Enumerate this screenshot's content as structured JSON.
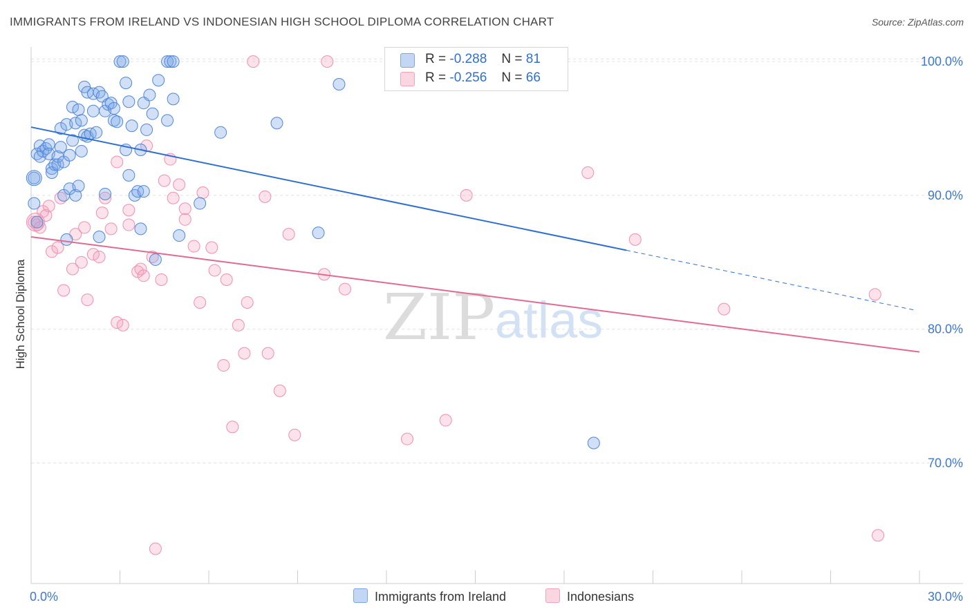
{
  "title": "IMMIGRANTS FROM IRELAND VS INDONESIAN HIGH SCHOOL DIPLOMA CORRELATION CHART",
  "source": "Source: ZipAtlas.com",
  "watermark": {
    "zip": "ZIP",
    "atlas": "atlas"
  },
  "legend": {
    "r_label": "R =",
    "n_label": "N =",
    "rows": [
      {
        "r": "-0.288",
        "n": "81",
        "color": "#7aa6e8"
      },
      {
        "r": "-0.256",
        "n": "66",
        "color": "#f4a3bd"
      }
    ]
  },
  "bottom_legend": [
    {
      "label": "Immigrants from Ireland",
      "color": "#7aa6e8"
    },
    {
      "label": "Indonesians",
      "color": "#f4a3bd"
    }
  ],
  "colors": {
    "blue_fill": "rgba(122,166,232,0.35)",
    "blue_stroke": "#4f86d6",
    "blue_line": "#2e6fd0",
    "pink_fill": "rgba(244,163,189,0.30)",
    "pink_stroke": "#ee8fad",
    "pink_line": "#e2698f",
    "grid": "#e2e2e2",
    "tick_label": "#3d78cc"
  },
  "chart_data": {
    "type": "scatter",
    "xlabel": "",
    "ylabel": "High School Diploma",
    "x_tick_labels": [
      "0.0%",
      "30.0%"
    ],
    "y_tick_labels": [
      "100.0%",
      "90.0%",
      "80.0%",
      "70.0%"
    ],
    "y_ticks": [
      100,
      90,
      80,
      70
    ],
    "xlim": [
      0,
      30
    ],
    "ylim": [
      61,
      101.5
    ],
    "grid": true,
    "legend_position": "top-center",
    "series": [
      {
        "name": "Immigrants from Ireland",
        "color": "#7aa6e8",
        "trend": {
          "x0": 0,
          "y0": 95.1,
          "x1": 20.1,
          "y1": 85.9,
          "dashed_to_x": 29.9,
          "dashed_to_y": 81.4
        },
        "points": [
          [
            0.1,
            91.3
          ],
          [
            0.1,
            89.4
          ],
          [
            0.2,
            88.0
          ],
          [
            0.2,
            93.1
          ],
          [
            0.3,
            93.7
          ],
          [
            0.3,
            92.9
          ],
          [
            0.4,
            93.3
          ],
          [
            0.5,
            93.5
          ],
          [
            0.6,
            93.8
          ],
          [
            0.6,
            93.1
          ],
          [
            0.7,
            92.0
          ],
          [
            0.7,
            91.7
          ],
          [
            0.8,
            92.3
          ],
          [
            0.9,
            92.3
          ],
          [
            0.9,
            92.9
          ],
          [
            1.0,
            95.0
          ],
          [
            1.0,
            93.6
          ],
          [
            1.1,
            90.0
          ],
          [
            1.1,
            92.5
          ],
          [
            1.2,
            95.3
          ],
          [
            1.2,
            86.7
          ],
          [
            1.3,
            93.0
          ],
          [
            1.3,
            90.5
          ],
          [
            1.4,
            94.1
          ],
          [
            1.4,
            96.6
          ],
          [
            1.5,
            95.4
          ],
          [
            1.5,
            90.0
          ],
          [
            1.6,
            96.4
          ],
          [
            1.6,
            90.7
          ],
          [
            1.7,
            93.3
          ],
          [
            1.7,
            95.6
          ],
          [
            1.8,
            94.5
          ],
          [
            1.8,
            98.1
          ],
          [
            1.9,
            94.4
          ],
          [
            1.9,
            97.7
          ],
          [
            2.0,
            94.6
          ],
          [
            2.1,
            96.3
          ],
          [
            2.1,
            97.6
          ],
          [
            2.2,
            94.7
          ],
          [
            2.3,
            97.7
          ],
          [
            2.3,
            86.9
          ],
          [
            2.4,
            97.4
          ],
          [
            2.5,
            96.3
          ],
          [
            2.5,
            90.1
          ],
          [
            2.6,
            96.8
          ],
          [
            2.7,
            96.9
          ],
          [
            2.8,
            95.6
          ],
          [
            2.8,
            96.5
          ],
          [
            2.9,
            95.5
          ],
          [
            3.0,
            100.0
          ],
          [
            3.1,
            100.0
          ],
          [
            3.2,
            93.4
          ],
          [
            3.2,
            98.4
          ],
          [
            3.3,
            97.0
          ],
          [
            3.3,
            91.5
          ],
          [
            3.4,
            95.2
          ],
          [
            3.5,
            90.0
          ],
          [
            3.6,
            90.3
          ],
          [
            3.7,
            93.4
          ],
          [
            3.7,
            87.5
          ],
          [
            3.8,
            90.3
          ],
          [
            3.8,
            96.9
          ],
          [
            3.9,
            94.9
          ],
          [
            4.0,
            97.5
          ],
          [
            4.1,
            96.1
          ],
          [
            4.2,
            85.2
          ],
          [
            4.3,
            98.6
          ],
          [
            4.6,
            95.6
          ],
          [
            4.6,
            100.0
          ],
          [
            4.7,
            100.0
          ],
          [
            4.8,
            100.0
          ],
          [
            4.8,
            97.2
          ],
          [
            5.0,
            87.0
          ],
          [
            5.7,
            89.4
          ],
          [
            6.4,
            94.7
          ],
          [
            8.3,
            95.4
          ],
          [
            9.7,
            87.2
          ],
          [
            10.4,
            98.3
          ],
          [
            19.0,
            71.5
          ]
        ]
      },
      {
        "name": "Indonesians",
        "color": "#f4a3bd",
        "trend": {
          "x0": 0,
          "y0": 86.9,
          "x1": 30,
          "y1": 78.3
        },
        "points": [
          [
            0.1,
            88.0
          ],
          [
            0.2,
            87.8
          ],
          [
            0.3,
            87.6
          ],
          [
            0.4,
            88.8
          ],
          [
            0.5,
            88.5
          ],
          [
            0.6,
            89.2
          ],
          [
            0.7,
            85.8
          ],
          [
            0.9,
            86.1
          ],
          [
            1.0,
            89.8
          ],
          [
            1.1,
            82.9
          ],
          [
            1.4,
            84.5
          ],
          [
            1.5,
            87.1
          ],
          [
            1.7,
            85.0
          ],
          [
            1.8,
            87.6
          ],
          [
            1.9,
            82.2
          ],
          [
            2.1,
            85.6
          ],
          [
            2.3,
            85.4
          ],
          [
            2.4,
            88.7
          ],
          [
            2.5,
            89.8
          ],
          [
            2.7,
            87.5
          ],
          [
            2.9,
            92.5
          ],
          [
            2.9,
            80.5
          ],
          [
            3.1,
            80.3
          ],
          [
            3.3,
            87.8
          ],
          [
            3.3,
            88.9
          ],
          [
            3.6,
            84.3
          ],
          [
            3.7,
            84.5
          ],
          [
            3.8,
            84.0
          ],
          [
            3.9,
            93.7
          ],
          [
            4.1,
            85.4
          ],
          [
            4.2,
            63.6
          ],
          [
            4.4,
            83.7
          ],
          [
            4.5,
            91.1
          ],
          [
            4.7,
            92.7
          ],
          [
            4.8,
            89.8
          ],
          [
            5.0,
            90.8
          ],
          [
            5.2,
            89.0
          ],
          [
            5.2,
            88.2
          ],
          [
            5.5,
            86.2
          ],
          [
            5.7,
            82.0
          ],
          [
            5.8,
            90.2
          ],
          [
            6.1,
            86.1
          ],
          [
            6.2,
            84.4
          ],
          [
            6.5,
            77.3
          ],
          [
            6.6,
            83.7
          ],
          [
            6.8,
            72.7
          ],
          [
            7.0,
            80.3
          ],
          [
            7.2,
            78.2
          ],
          [
            7.3,
            82.0
          ],
          [
            7.5,
            100.0
          ],
          [
            7.9,
            89.9
          ],
          [
            8.0,
            78.2
          ],
          [
            8.4,
            75.4
          ],
          [
            8.7,
            87.1
          ],
          [
            8.9,
            72.1
          ],
          [
            9.9,
            84.1
          ],
          [
            10.0,
            100.0
          ],
          [
            10.6,
            83.0
          ],
          [
            12.7,
            71.8
          ],
          [
            14.0,
            73.2
          ],
          [
            14.7,
            90.0
          ],
          [
            18.8,
            91.7
          ],
          [
            20.4,
            86.7
          ],
          [
            23.4,
            81.5
          ],
          [
            28.5,
            82.6
          ],
          [
            28.6,
            64.6
          ]
        ]
      }
    ]
  }
}
